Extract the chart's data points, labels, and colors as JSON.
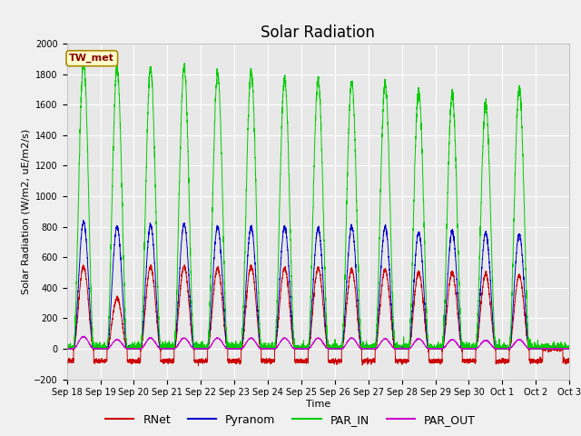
{
  "title": "Solar Radiation",
  "ylabel": "Solar Radiation (W/m2, uE/m2/s)",
  "xlabel": "Time",
  "ylim": [
    -200,
    2000
  ],
  "fig_bg_color": "#f0f0f0",
  "plot_bg_color": "#e8e8e8",
  "grid_color": "white",
  "annotation_text": "TW_met",
  "annotation_bg": "#ffffcc",
  "annotation_border": "#aa8800",
  "series": {
    "RNet": {
      "color": "#cc0000"
    },
    "Pyranom": {
      "color": "#0000cc"
    },
    "PAR_IN": {
      "color": "#00cc00"
    },
    "PAR_OUT": {
      "color": "#cc00cc"
    }
  },
  "x_tick_labels": [
    "Sep 18",
    "Sep 19",
    "Sep 20",
    "Sep 21",
    "Sep 22",
    "Sep 23",
    "Sep 24",
    "Sep 25",
    "Sep 26",
    "Sep 27",
    "Sep 28",
    "Sep 29",
    "Sep 30",
    "Oct 1",
    "Oct 2",
    "Oct 3"
  ],
  "n_days": 15,
  "peaks": {
    "PAR_IN": [
      1880,
      1840,
      1840,
      1840,
      1800,
      1820,
      1770,
      1760,
      1750,
      1730,
      1690,
      1660,
      1600,
      1710,
      0
    ],
    "Pyranom": [
      830,
      800,
      810,
      820,
      800,
      800,
      800,
      790,
      800,
      800,
      760,
      770,
      760,
      750,
      0
    ],
    "RNet": [
      540,
      330,
      540,
      540,
      530,
      540,
      530,
      530,
      520,
      520,
      500,
      500,
      490,
      480,
      0
    ],
    "PAR_OUT": [
      80,
      60,
      70,
      70,
      70,
      70,
      70,
      70,
      70,
      65,
      65,
      60,
      55,
      60,
      0
    ]
  },
  "night_min_rnet": -80,
  "legend_fontsize": 9,
  "title_fontsize": 12,
  "tick_fontsize": 7,
  "ylabel_fontsize": 8,
  "xlabel_fontsize": 8
}
